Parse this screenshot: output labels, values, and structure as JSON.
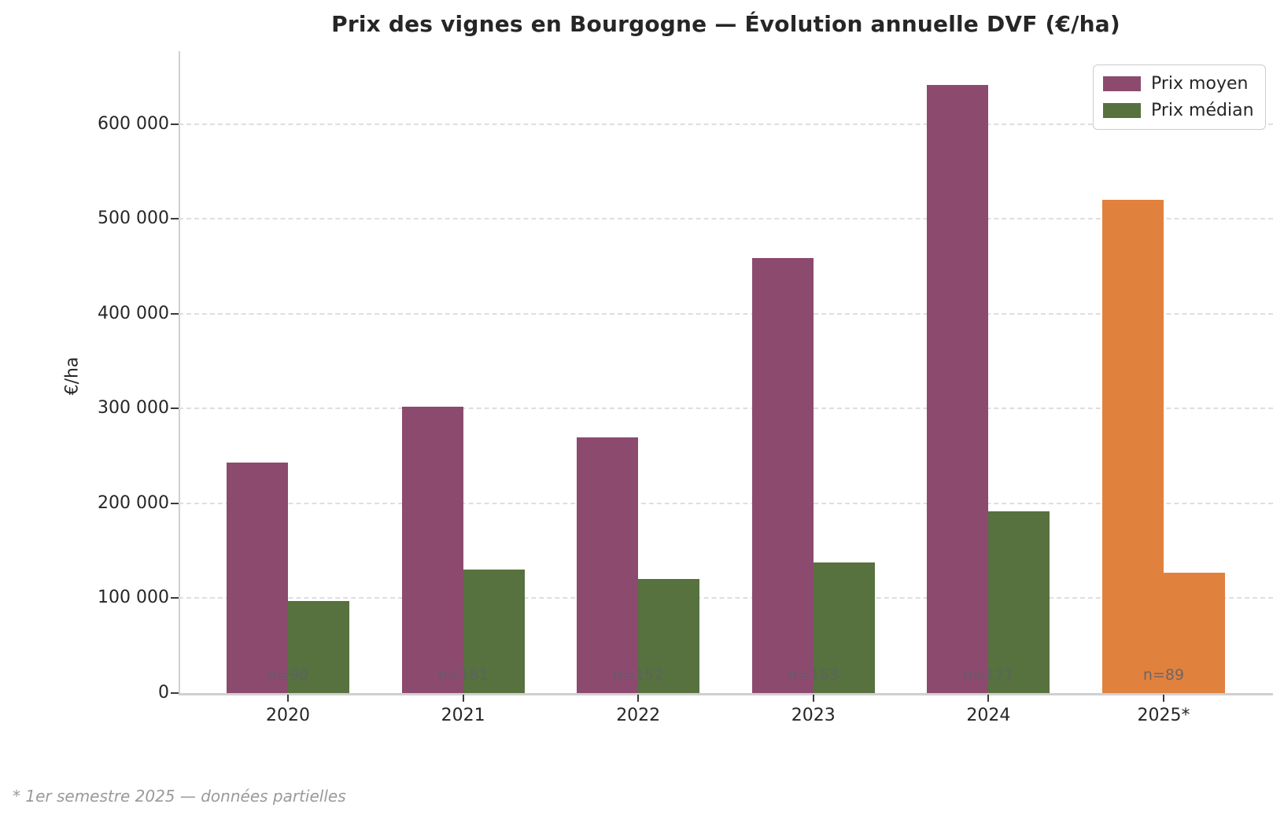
{
  "figure": {
    "footnote": "* 1er semestre 2025 — données partielles"
  },
  "chart_data": {
    "type": "bar",
    "title": "Prix des vignes en Bourgogne — Évolution annuelle DVF (€/ha)",
    "xlabel": "",
    "ylabel": "€/ha",
    "categories": [
      "2020",
      "2021",
      "2022",
      "2023",
      "2024",
      "2025*"
    ],
    "series": [
      {
        "name": "Prix moyen",
        "color": "#8C4A6F",
        "values": [
          243000,
          302000,
          270000,
          459000,
          641000,
          520000
        ]
      },
      {
        "name": "Prix médian",
        "color": "#57713F",
        "values": [
          97000,
          130000,
          120000,
          138000,
          192000,
          127000
        ]
      }
    ],
    "highlight_group": {
      "category": "2025*",
      "category_index": 5,
      "color": "#E0813E",
      "meaning": "1er semestre 2025 — données partielles"
    },
    "sample_counts": {
      "prefix": "n=",
      "values": [
        90,
        181,
        152,
        163,
        171,
        89
      ]
    },
    "yticks": [
      {
        "value": 0,
        "label": "0"
      },
      {
        "value": 100000,
        "label": "100 000"
      },
      {
        "value": 200000,
        "label": "200 000"
      },
      {
        "value": 300000,
        "label": "300 000"
      },
      {
        "value": 400000,
        "label": "400 000"
      },
      {
        "value": 500000,
        "label": "500 000"
      },
      {
        "value": 600000,
        "label": "600 000"
      }
    ],
    "ylim": [
      0,
      677000
    ],
    "grid": "horizontal-dashed",
    "legend_position": "upper-right"
  },
  "colors": {
    "background": "#ffffff",
    "prix_moyen": "#8C4A6F",
    "prix_median": "#57713F",
    "partial_2025": "#E0813E",
    "gridline": "#dedede",
    "spine": "#d0d0d0",
    "tick": "#3a3a3a",
    "text": "#262626",
    "annotation": "#5d6068",
    "footnote": "#9a9a9a"
  }
}
